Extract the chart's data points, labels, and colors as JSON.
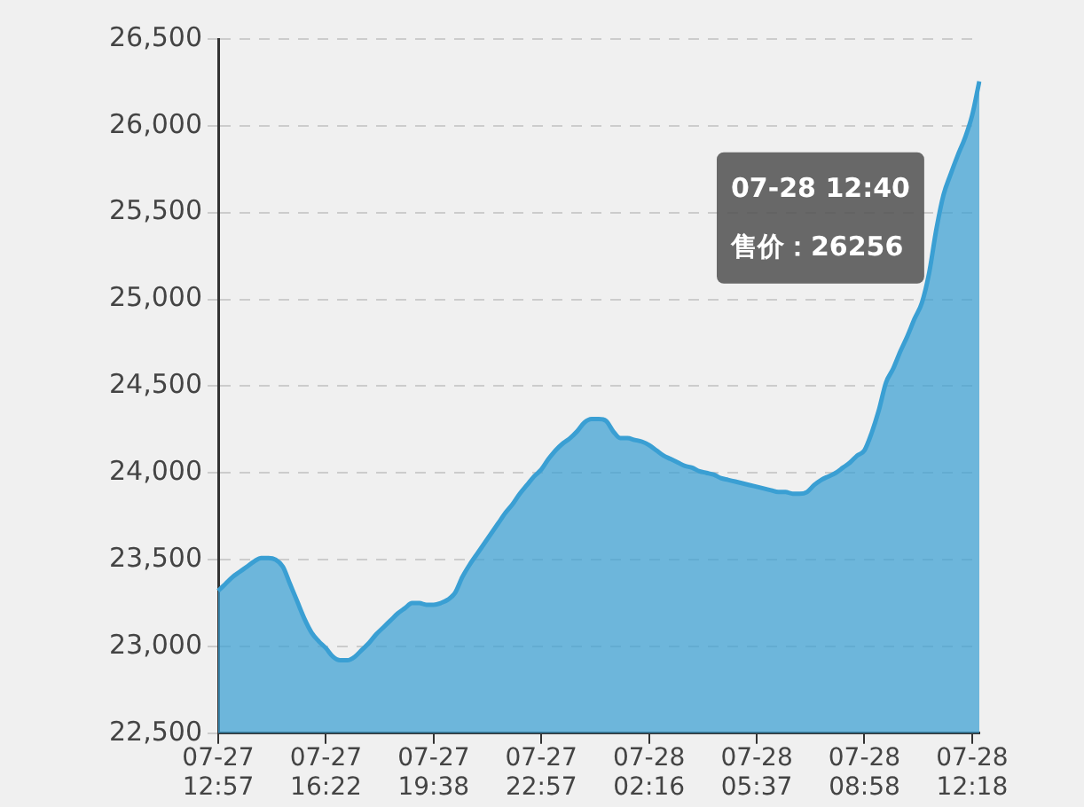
{
  "chart_data": {
    "type": "area",
    "categories": [
      "07-27 12:57",
      null,
      null,
      null,
      null,
      null,
      null,
      null,
      null,
      null,
      null,
      null,
      null,
      null,
      null,
      "07-27 16:22",
      null,
      null,
      null,
      null,
      null,
      null,
      null,
      null,
      null,
      null,
      null,
      null,
      null,
      null,
      "07-27 19:38",
      null,
      null,
      null,
      null,
      null,
      null,
      null,
      null,
      null,
      null,
      null,
      null,
      null,
      null,
      "07-27 22:57",
      null,
      null,
      null,
      null,
      null,
      null,
      null,
      null,
      null,
      null,
      null,
      null,
      null,
      null,
      "07-28 02:16",
      null,
      null,
      null,
      null,
      null,
      null,
      null,
      null,
      null,
      null,
      null,
      null,
      null,
      null,
      "07-28 05:37",
      null,
      null,
      null,
      null,
      null,
      null,
      null,
      null,
      null,
      null,
      null,
      null,
      null,
      null,
      "07-28 08:58",
      null,
      null,
      null,
      null,
      null,
      null,
      null,
      null,
      null,
      null,
      null,
      null,
      null,
      null,
      "07-28 12:18",
      null
    ],
    "series": [
      {
        "color": "#3a9fd3",
        "values": [
          23320,
          23360,
          23400,
          23430,
          23460,
          23490,
          23510,
          23510,
          23500,
          23460,
          23360,
          23260,
          23160,
          23080,
          23030,
          22990,
          22940,
          22920,
          22920,
          22940,
          22980,
          23020,
          23070,
          23110,
          23150,
          23190,
          23220,
          23250,
          23250,
          23240,
          23240,
          23250,
          23270,
          23310,
          23400,
          23470,
          23530,
          23590,
          23650,
          23710,
          23770,
          23820,
          23880,
          23930,
          23980,
          24020,
          24080,
          24130,
          24170,
          24200,
          24240,
          24290,
          24310,
          24310,
          24300,
          24240,
          24200,
          24200,
          24190,
          24180,
          24160,
          24130,
          24100,
          24080,
          24060,
          24040,
          24030,
          24010,
          24000,
          23990,
          23970,
          23960,
          23950,
          23940,
          23930,
          23920,
          23910,
          23900,
          23890,
          23890,
          23880,
          23880,
          23890,
          23930,
          23960,
          23980,
          24000,
          24030,
          24060,
          24100,
          24130,
          24230,
          24360,
          24520,
          24600,
          24700,
          24790,
          24890,
          24980,
          25150,
          25400,
          25600,
          25720,
          25830,
          25930,
          26060,
          26256
        ]
      }
    ],
    "ylim": [
      22500,
      26500
    ],
    "yticks": [
      {
        "value": 22500,
        "label": "22,500"
      },
      {
        "value": 23000,
        "label": "23,000"
      },
      {
        "value": 23500,
        "label": "23,500"
      },
      {
        "value": 24000,
        "label": "24,000"
      },
      {
        "value": 24500,
        "label": "24,500"
      },
      {
        "value": 25000,
        "label": "25,000"
      },
      {
        "value": 25500,
        "label": "25,500"
      },
      {
        "value": 26000,
        "label": "26,000"
      },
      {
        "value": 26500,
        "label": "26,500"
      }
    ],
    "grid": "y",
    "legend": false,
    "annotations": [
      "07-28 12:40\n售价：26256"
    ]
  }
}
